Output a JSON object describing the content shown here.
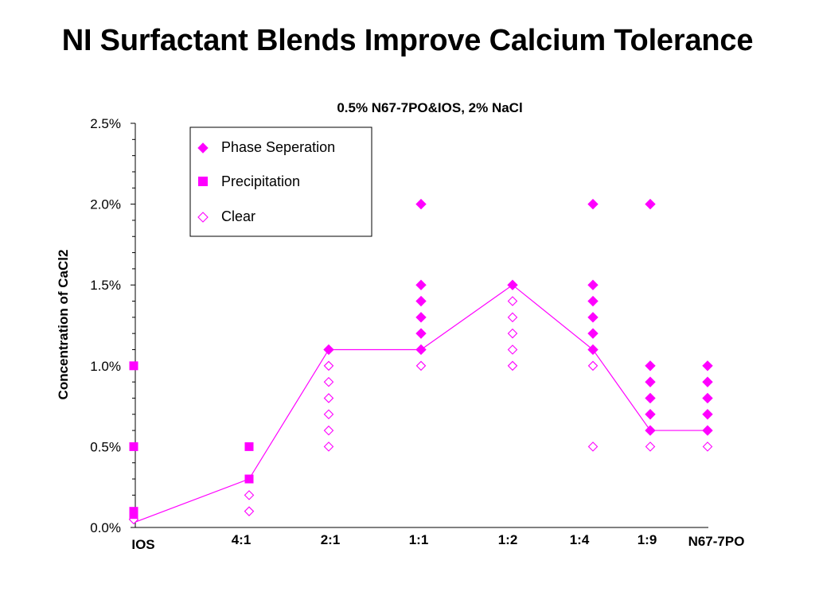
{
  "slide_title": "NI Surfactant Blends Improve Calcium Tolerance",
  "colors": {
    "marker": "#ff00ff",
    "line": "#ff00ff",
    "axis": "#000000"
  },
  "chart_data": {
    "type": "scatter",
    "title": "0.5% N67-7PO&IOS, 2% NaCl",
    "xlabel": "",
    "ylabel": "Concentration of CaCl2",
    "categories": [
      "IOS",
      "4:1",
      "2:1",
      "1:1",
      "1:2",
      "1:4",
      "1:9",
      "N67-7PO"
    ],
    "y_ticks": [
      "0.0%",
      "0.5%",
      "1.0%",
      "1.5%",
      "2.0%",
      "2.5%"
    ],
    "ylim": [
      0,
      2.5
    ],
    "y_unit": "%",
    "legend": {
      "placement": "top-left",
      "entries": [
        "Phase Seperation",
        "Precipitation",
        "Clear"
      ]
    },
    "series": [
      {
        "name": "Phase Seperation",
        "marker": "filled-diamond",
        "points": [
          {
            "x": "2:1",
            "y": 1.1
          },
          {
            "x": "1:1",
            "y": 1.1
          },
          {
            "x": "1:1",
            "y": 1.2
          },
          {
            "x": "1:1",
            "y": 1.3
          },
          {
            "x": "1:1",
            "y": 1.4
          },
          {
            "x": "1:1",
            "y": 1.5
          },
          {
            "x": "1:1",
            "y": 2.0
          },
          {
            "x": "1:2",
            "y": 1.5
          },
          {
            "x": "1:4",
            "y": 1.1
          },
          {
            "x": "1:4",
            "y": 1.2
          },
          {
            "x": "1:4",
            "y": 1.3
          },
          {
            "x": "1:4",
            "y": 1.4
          },
          {
            "x": "1:4",
            "y": 1.5
          },
          {
            "x": "1:4",
            "y": 2.0
          },
          {
            "x": "1:9",
            "y": 0.6
          },
          {
            "x": "1:9",
            "y": 0.7
          },
          {
            "x": "1:9",
            "y": 0.8
          },
          {
            "x": "1:9",
            "y": 0.9
          },
          {
            "x": "1:9",
            "y": 1.0
          },
          {
            "x": "1:9",
            "y": 2.0
          },
          {
            "x": "N67-7PO",
            "y": 0.6
          },
          {
            "x": "N67-7PO",
            "y": 0.7
          },
          {
            "x": "N67-7PO",
            "y": 0.8
          },
          {
            "x": "N67-7PO",
            "y": 0.9
          },
          {
            "x": "N67-7PO",
            "y": 1.0
          }
        ]
      },
      {
        "name": "Precipitation",
        "marker": "filled-square",
        "points": [
          {
            "x": "IOS",
            "y": 0.08
          },
          {
            "x": "IOS",
            "y": 0.1
          },
          {
            "x": "IOS",
            "y": 0.5
          },
          {
            "x": "IOS",
            "y": 1.0
          },
          {
            "x": "4:1",
            "y": 0.3
          },
          {
            "x": "4:1",
            "y": 0.5
          }
        ]
      },
      {
        "name": "Clear",
        "marker": "open-diamond",
        "points": [
          {
            "x": "IOS",
            "y": 0.05
          },
          {
            "x": "4:1",
            "y": 0.1
          },
          {
            "x": "4:1",
            "y": 0.2
          },
          {
            "x": "2:1",
            "y": 0.5
          },
          {
            "x": "2:1",
            "y": 0.6
          },
          {
            "x": "2:1",
            "y": 0.7
          },
          {
            "x": "2:1",
            "y": 0.8
          },
          {
            "x": "2:1",
            "y": 0.9
          },
          {
            "x": "2:1",
            "y": 1.0
          },
          {
            "x": "1:1",
            "y": 1.0
          },
          {
            "x": "1:2",
            "y": 1.0
          },
          {
            "x": "1:2",
            "y": 1.1
          },
          {
            "x": "1:2",
            "y": 1.2
          },
          {
            "x": "1:2",
            "y": 1.3
          },
          {
            "x": "1:2",
            "y": 1.4
          },
          {
            "x": "1:4",
            "y": 0.5
          },
          {
            "x": "1:4",
            "y": 1.0
          },
          {
            "x": "1:9",
            "y": 0.5
          },
          {
            "x": "N67-7PO",
            "y": 0.5
          }
        ]
      },
      {
        "name": "",
        "marker": "line",
        "points": [
          {
            "x": "IOS",
            "y": 0.03
          },
          {
            "x": "4:1",
            "y": 0.3
          },
          {
            "x": "2:1",
            "y": 1.1
          },
          {
            "x": "1:1",
            "y": 1.1
          },
          {
            "x": "1:2",
            "y": 1.5
          },
          {
            "x": "1:4",
            "y": 1.1
          },
          {
            "x": "1:9",
            "y": 0.6
          },
          {
            "x": "N67-7PO",
            "y": 0.6
          }
        ]
      }
    ]
  }
}
